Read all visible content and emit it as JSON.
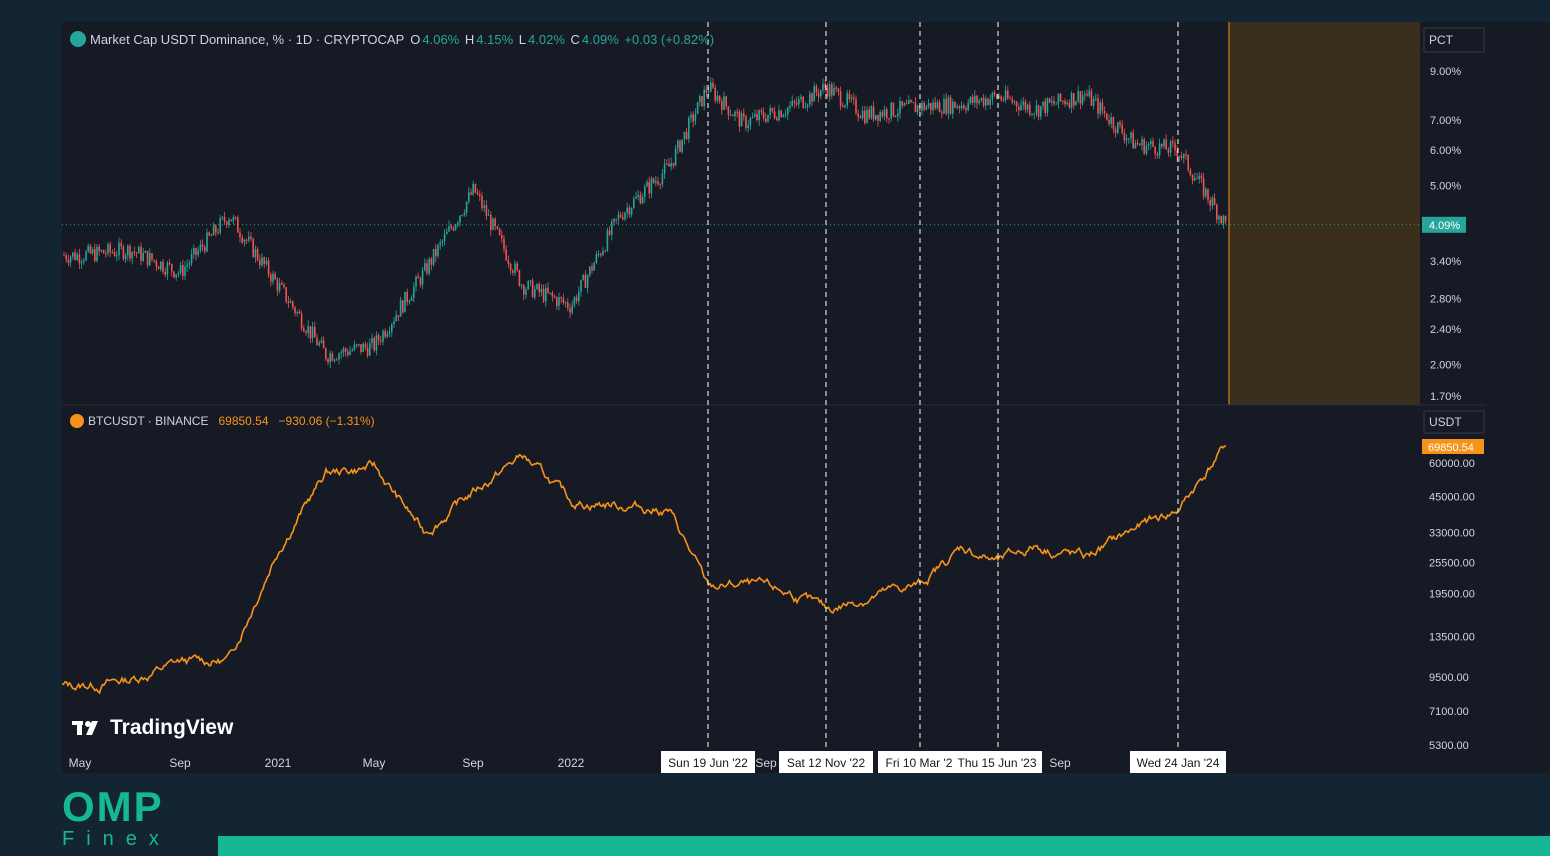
{
  "header": {
    "symbol_title": "Market Cap USDT Dominance, % · 1D · CRYPTOCAP",
    "open_label": "O",
    "open": "4.06%",
    "high_label": "H",
    "high": "4.15%",
    "low_label": "L",
    "low": "4.02%",
    "close_label": "C",
    "close": "4.09%",
    "change": "+0.03 (+0.82%)"
  },
  "lower_header": {
    "symbol_title": "BTCUSDT · BINANCE",
    "price": "69850.54",
    "change": "−930.06 (−1.31%)"
  },
  "watermark": "TradingView",
  "brand": {
    "name": "OMP",
    "sub": "Finex"
  },
  "colors": {
    "background": "#161a25",
    "frame": "#132433",
    "up": "#26a69a",
    "down": "#ef5350",
    "btc_line": "#f7931a",
    "highlight_zone": "#3a2e1c",
    "accent": "#16b794"
  },
  "chart_data": [
    {
      "type": "candlestick",
      "title": "Market Cap USDT Dominance, % · 1D · CRYPTOCAP",
      "scale": "log",
      "unit": "PCT",
      "y_ticks": [
        "9.00%",
        "7.00%",
        "6.00%",
        "5.00%",
        "4.09%",
        "3.40%",
        "2.80%",
        "2.40%",
        "2.00%",
        "1.70%"
      ],
      "y_tick_values": [
        9.0,
        7.0,
        6.0,
        5.0,
        4.09,
        3.4,
        2.8,
        2.4,
        2.0,
        1.7
      ],
      "last_value_label": "4.09%",
      "x": [
        "2020-05",
        "2020-07",
        "2020-09",
        "2020-11",
        "2021-01",
        "2021-03",
        "2021-05",
        "2021-07",
        "2021-09",
        "2021-11",
        "2022-01",
        "2022-03",
        "2022-05",
        "2022-06-19",
        "2022-08",
        "2022-10",
        "2022-11-12",
        "2023-01",
        "2023-03-10",
        "2023-05",
        "2023-06-15",
        "2023-08",
        "2023-10",
        "2023-12",
        "2024-01-24",
        "2024-03"
      ],
      "values": [
        3.5,
        3.6,
        3.2,
        4.3,
        3.0,
        2.1,
        2.2,
        3.2,
        4.9,
        3.0,
        2.7,
        4.3,
        5.5,
        8.3,
        6.9,
        7.5,
        8.3,
        7.2,
        7.5,
        7.6,
        7.9,
        7.4,
        8.0,
        6.2,
        6.0,
        4.09
      ]
    },
    {
      "type": "line",
      "title": "BTCUSDT · BINANCE",
      "scale": "log",
      "unit": "USDT",
      "y_ticks": [
        "60000.00",
        "45000.00",
        "33000.00",
        "25500.00",
        "19500.00",
        "13500.00",
        "9500.00",
        "7100.00",
        "5300.00"
      ],
      "y_tick_values": [
        60000,
        45000,
        33000,
        25500,
        19500,
        13500,
        9500,
        7100,
        5300
      ],
      "last_value_label": "69850.54",
      "x": [
        "2020-05",
        "2020-07",
        "2020-09",
        "2020-11",
        "2021-01",
        "2021-03",
        "2021-05",
        "2021-07",
        "2021-09",
        "2021-11",
        "2022-01",
        "2022-03",
        "2022-05",
        "2022-06-19",
        "2022-08",
        "2022-10",
        "2022-11-12",
        "2023-01",
        "2023-03-10",
        "2023-05",
        "2023-06-15",
        "2023-08",
        "2023-10",
        "2023-12",
        "2024-01-24",
        "2024-03"
      ],
      "values": [
        8800,
        9300,
        10800,
        11000,
        29000,
        55000,
        58000,
        33000,
        47000,
        64000,
        43000,
        42000,
        40000,
        20500,
        21000,
        19500,
        16800,
        18800,
        21000,
        29000,
        25500,
        29500,
        26500,
        34000,
        40000,
        69850.54
      ]
    }
  ],
  "x_axis": {
    "tick_labels": [
      "May",
      "Sep",
      "2021",
      "May",
      "Sep",
      "2022",
      "Sep",
      "Sep"
    ],
    "crosshair_labels": [
      "Sun 19 Jun '22",
      "Sat 12 Nov '22",
      "Fri 10 Mar '2",
      "Thu 15 Jun '23",
      "Wed 24 Jan '24"
    ]
  }
}
